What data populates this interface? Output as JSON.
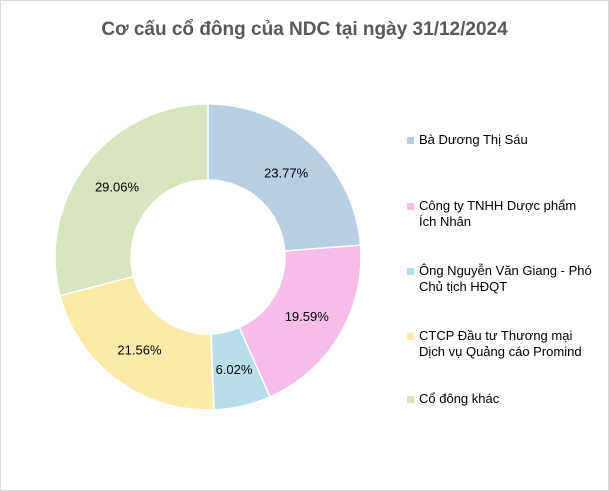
{
  "chart_data": {
    "type": "pie",
    "title": "Cơ cấu cổ đông của NDC tại ngày 31/12/2024",
    "categories": [
      "Bà Dương Thị Sáu",
      "Công ty TNHH Dược phẩm Ích Nhân",
      "Ông Nguyễn Văn Giang - Phó Chủ tịch HĐQT",
      "CTCP Đầu tư Thương mại Dịch vụ Quảng cáo Promind",
      "Cổ đông khác"
    ],
    "values": [
      23.77,
      19.59,
      6.02,
      21.56,
      29.06
    ],
    "labels": [
      "23.77%",
      "19.59%",
      "6.02%",
      "21.56%",
      "29.06%"
    ],
    "colors": [
      "#b9cde5",
      "#f6bde6",
      "#b7dee8",
      "#fde9a8",
      "#d7e4bd"
    ],
    "donut": true,
    "legend_position": "right"
  }
}
